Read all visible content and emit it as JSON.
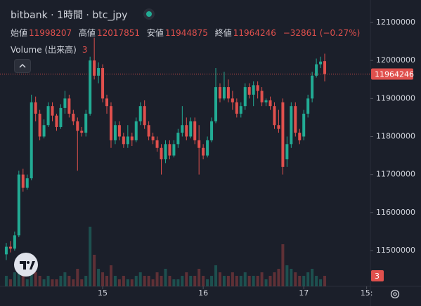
{
  "chart_data": {
    "type": "candlestick",
    "title": "bitbank · 1時間 · btc_jpy",
    "ohlc_labels": [
      "始値",
      "高値",
      "安値",
      "終値"
    ],
    "change_label": "−32861 (−0.27%)",
    "volume_title": "Volume (出来高)",
    "up_color": "#22ab94",
    "down_color": "#e0504d",
    "x": [
      -23,
      -22,
      -21,
      -20,
      -19,
      -18,
      -17,
      -16,
      -15,
      -14,
      -13,
      -12,
      -11,
      -10,
      -9,
      -8,
      -7,
      -6,
      -5,
      -4,
      -3,
      -2,
      -1,
      0,
      1,
      2,
      3,
      4,
      5,
      6,
      7,
      8,
      9,
      10,
      11,
      12,
      13,
      14,
      15,
      16,
      17,
      18,
      19,
      20,
      21,
      22,
      23,
      24,
      25,
      26,
      27,
      28,
      29,
      30,
      31,
      32,
      33,
      34,
      35,
      36,
      37,
      38,
      39,
      40,
      41,
      42,
      43,
      44,
      45,
      46,
      47,
      48,
      49,
      50,
      51,
      52,
      53
    ],
    "open": [
      11490000,
      11510000,
      11505000,
      11540000,
      11700000,
      11665000,
      11690000,
      11890000,
      11860000,
      11800000,
      11830000,
      11880000,
      11855000,
      11825000,
      11875000,
      11900000,
      11860000,
      11840000,
      11815000,
      11810000,
      11860000,
      12000000,
      11960000,
      11980000,
      11900000,
      11880000,
      11790000,
      11830000,
      11800000,
      11780000,
      11800000,
      11790000,
      11840000,
      11880000,
      11830000,
      11800000,
      11790000,
      11770000,
      11740000,
      11780000,
      11750000,
      11780000,
      11810000,
      11830000,
      11800000,
      11840000,
      11790000,
      11770000,
      11750000,
      11790000,
      11840000,
      11930000,
      11900000,
      11930000,
      11900000,
      11890000,
      11860000,
      11880000,
      11930000,
      11910000,
      11935000,
      11920000,
      11890000,
      11895000,
      11880000,
      11830000,
      11890000,
      11740000,
      11780000,
      11880000,
      11810000,
      11800000,
      11860000,
      11900000,
      11960000,
      11990000,
      11998207
    ],
    "high": [
      11520000,
      11525000,
      11550000,
      11710000,
      11715000,
      11700000,
      11910000,
      11905000,
      11870000,
      11845000,
      11890000,
      11890000,
      11860000,
      11885000,
      11920000,
      11910000,
      11870000,
      11850000,
      11825000,
      11870000,
      12010000,
      12060000,
      11995000,
      11990000,
      11910000,
      11890000,
      11840000,
      11840000,
      11810000,
      11830000,
      11810000,
      11850000,
      11890000,
      11895000,
      11840000,
      11810000,
      11800000,
      11780000,
      11790000,
      11790000,
      11790000,
      11820000,
      11880000,
      11850000,
      11850000,
      11850000,
      11830000,
      11780000,
      11800000,
      11850000,
      11980000,
      11940000,
      11970000,
      11950000,
      11920000,
      11900000,
      11890000,
      11940000,
      11940000,
      11945000,
      11945000,
      11930000,
      11900000,
      11905000,
      11890000,
      11870000,
      11900000,
      11800000,
      11890000,
      11890000,
      11820000,
      11870000,
      11910000,
      11970000,
      12005000,
      12010000,
      12017851
    ],
    "low": [
      11475000,
      11495000,
      11500000,
      11535000,
      11655000,
      11660000,
      11685000,
      11840000,
      11790000,
      11795000,
      11825000,
      11840000,
      11815000,
      11820000,
      11860000,
      11850000,
      11830000,
      11710000,
      11800000,
      11800000,
      11855000,
      11950000,
      11940000,
      11890000,
      11860000,
      11770000,
      11780000,
      11790000,
      11770000,
      11770000,
      11775000,
      11785000,
      11830000,
      11820000,
      11790000,
      11780000,
      11760000,
      11700000,
      11730000,
      11740000,
      11745000,
      11770000,
      11800000,
      11790000,
      11795000,
      11780000,
      11700000,
      11740000,
      11745000,
      11785000,
      11835000,
      11890000,
      11895000,
      11890000,
      11870000,
      11850000,
      11850000,
      11870000,
      11900000,
      11880000,
      11900000,
      11880000,
      11880000,
      11870000,
      11820000,
      11810000,
      11700000,
      11720000,
      11770000,
      11800000,
      11780000,
      11790000,
      11850000,
      11890000,
      11955000,
      11980000,
      11944875
    ],
    "close": [
      11510000,
      11505000,
      11540000,
      11700000,
      11665000,
      11690000,
      11890000,
      11860000,
      11800000,
      11830000,
      11880000,
      11855000,
      11825000,
      11875000,
      11900000,
      11860000,
      11840000,
      11815000,
      11810000,
      11860000,
      12000000,
      11960000,
      11980000,
      11900000,
      11880000,
      11790000,
      11830000,
      11800000,
      11780000,
      11800000,
      11790000,
      11840000,
      11880000,
      11830000,
      11800000,
      11790000,
      11770000,
      11740000,
      11780000,
      11750000,
      11780000,
      11810000,
      11830000,
      11800000,
      11840000,
      11790000,
      11770000,
      11750000,
      11790000,
      11840000,
      11930000,
      11900000,
      11930000,
      11900000,
      11890000,
      11860000,
      11880000,
      11930000,
      11910000,
      11935000,
      11920000,
      11890000,
      11895000,
      11880000,
      11830000,
      11820000,
      11720000,
      11780000,
      11880000,
      11810000,
      11790000,
      11860000,
      11900000,
      11960000,
      11990000,
      11997107,
      11964246
    ],
    "volume": [
      3,
      2,
      4,
      5,
      3,
      2,
      6,
      4,
      3,
      2,
      3,
      2,
      2,
      3,
      4,
      3,
      2,
      5,
      2,
      3,
      17,
      9,
      5,
      4,
      3,
      6,
      3,
      2,
      3,
      2,
      2,
      3,
      4,
      3,
      3,
      2,
      4,
      3,
      5,
      3,
      2,
      2,
      3,
      4,
      3,
      3,
      5,
      3,
      2,
      3,
      6,
      4,
      3,
      3,
      4,
      3,
      3,
      4,
      3,
      3,
      3,
      4,
      2,
      3,
      4,
      5,
      12,
      6,
      5,
      4,
      3,
      3,
      4,
      5,
      3,
      2,
      3
    ],
    "xlim": [
      -24.5,
      63.9
    ],
    "xticks": [
      {
        "value": 0,
        "label": "15"
      },
      {
        "value": 24,
        "label": "16"
      },
      {
        "value": 48,
        "label": "17"
      },
      {
        "value": 63,
        "label": "15:"
      }
    ],
    "ylim": [
      11405800,
      12159100
    ],
    "yticks": [
      11500000,
      11600000,
      11700000,
      11800000,
      11900000,
      12000000,
      12100000
    ],
    "volume_ylim": [
      0,
      81.6
    ]
  }
}
